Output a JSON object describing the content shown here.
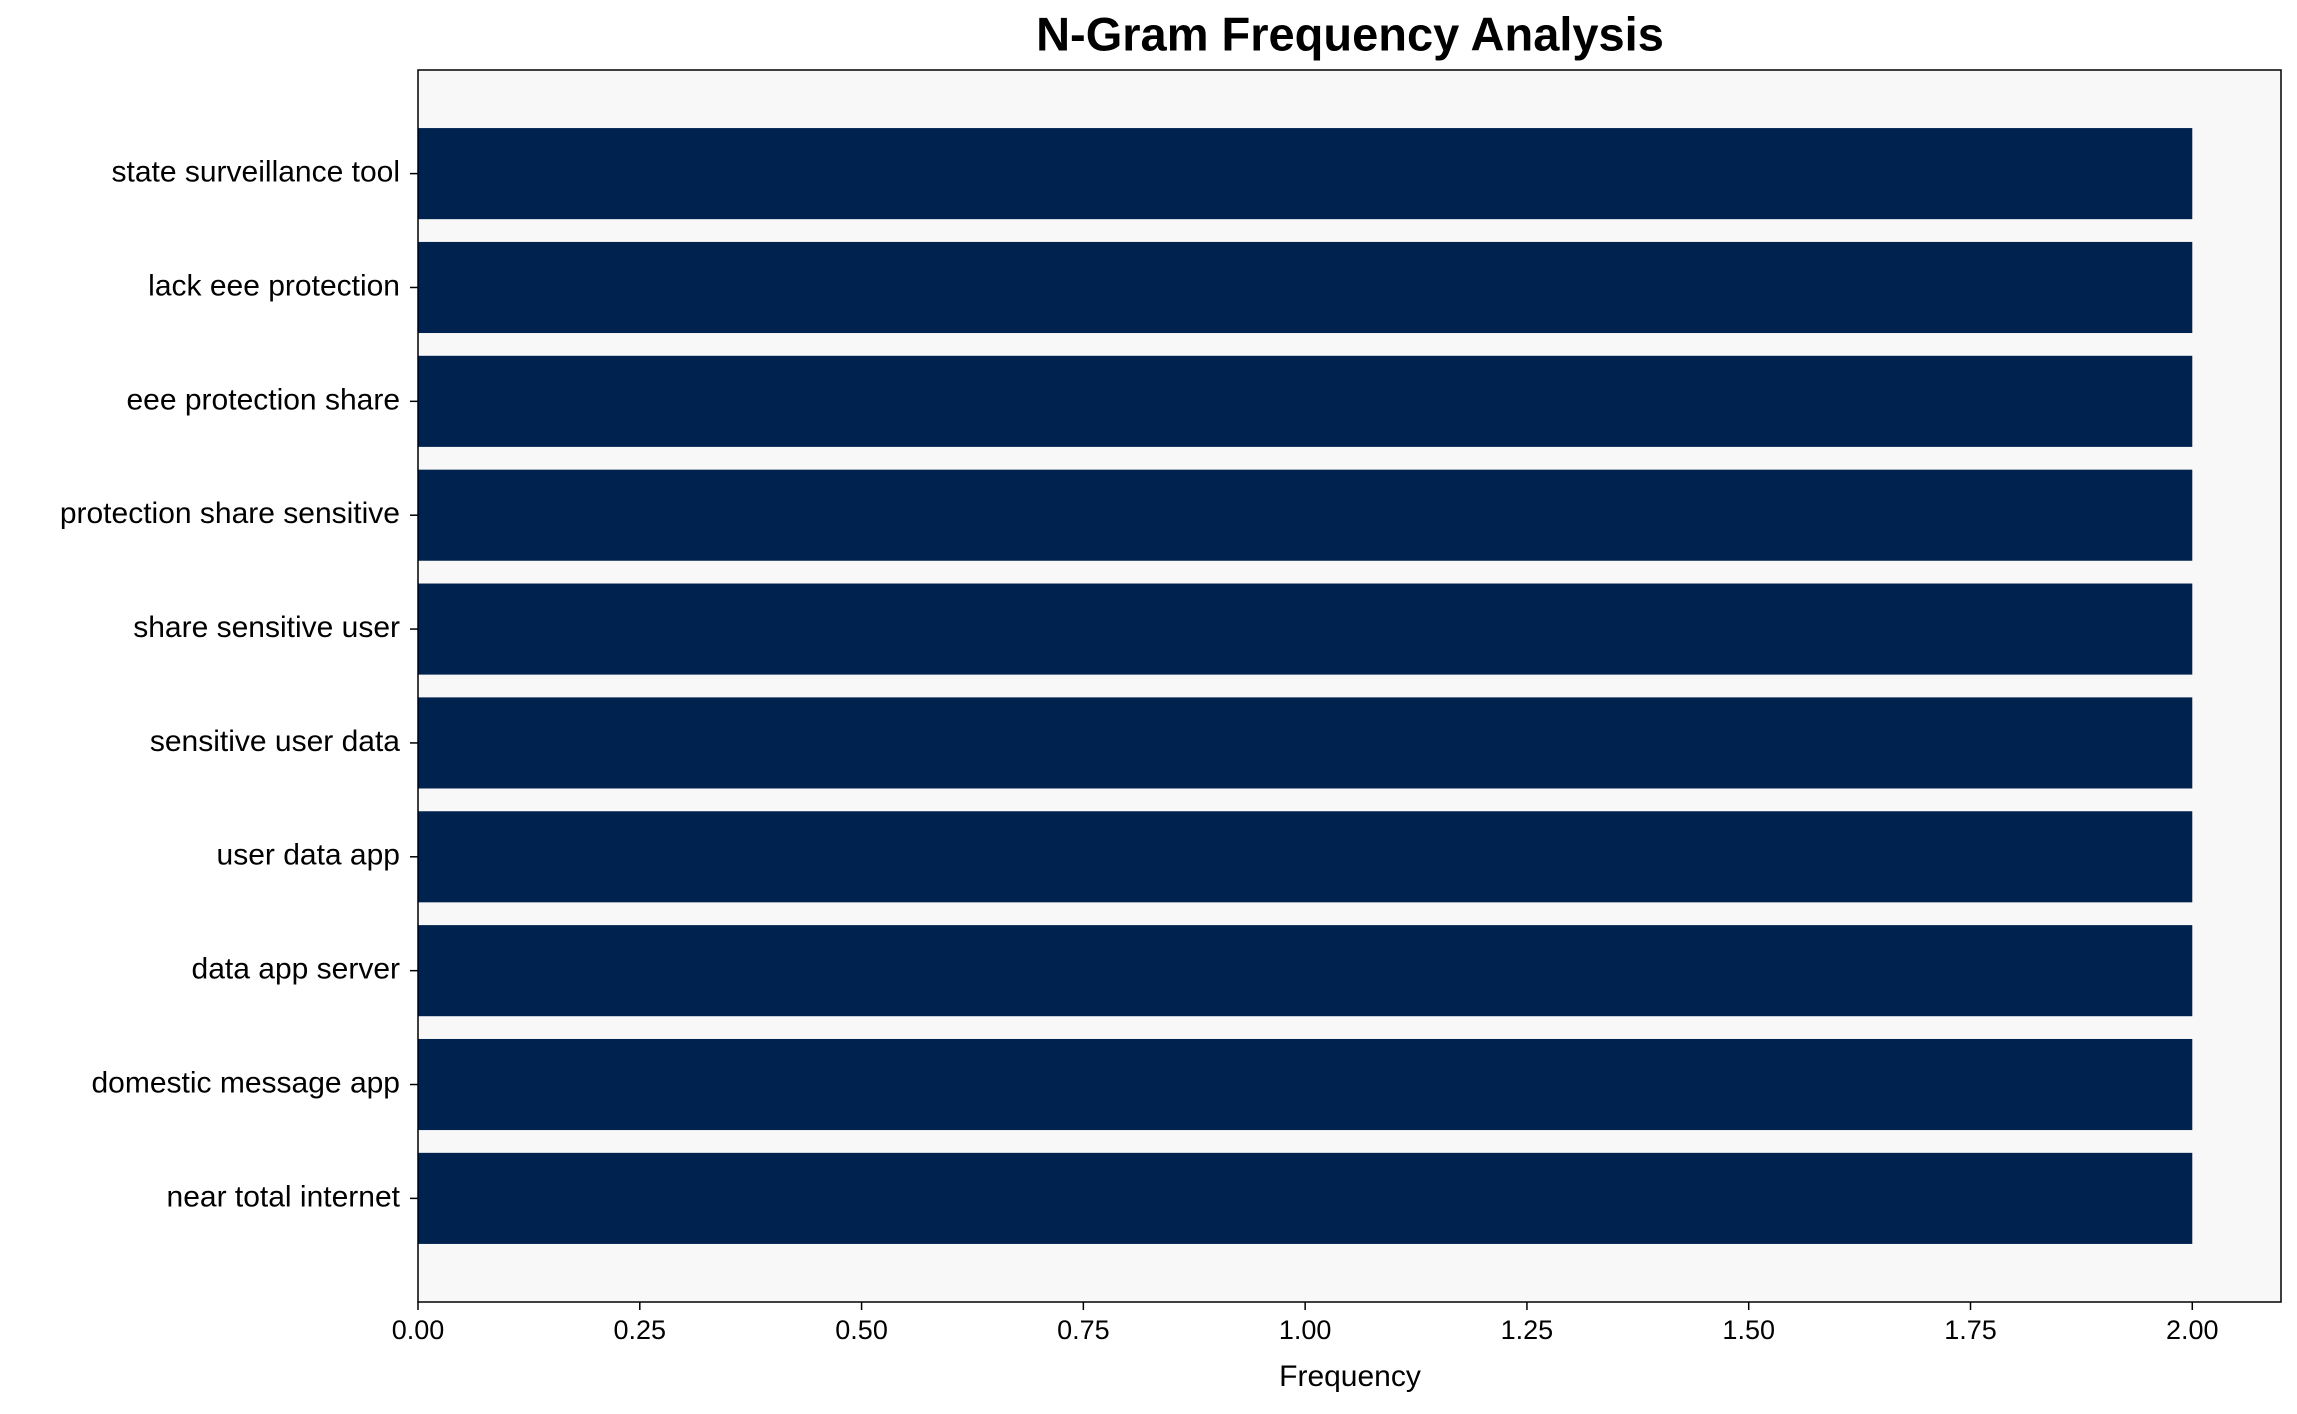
{
  "chart_data": {
    "type": "barh",
    "title": "N-Gram Frequency Analysis",
    "x_label": "Frequency",
    "categories": [
      "state surveillance tool",
      "lack eee protection",
      "eee protection share",
      "protection share sensitive",
      "share sensitive user",
      "sensitive user data",
      "user data app",
      "data app server",
      "domestic message app",
      "near total internet"
    ],
    "values": [
      2,
      2,
      2,
      2,
      2,
      2,
      2,
      2,
      2,
      2
    ],
    "color": "#00224e",
    "plot_background": "#f8f8f8",
    "xlim": [
      0,
      2.1
    ],
    "xticks": [
      {
        "value": 0,
        "label": "0.00"
      },
      {
        "value": 0.25,
        "label": "0.25"
      },
      {
        "value": 0.5,
        "label": "0.50"
      },
      {
        "value": 0.75,
        "label": "0.75"
      },
      {
        "value": 1,
        "label": "1.00"
      },
      {
        "value": 1.25,
        "label": "1.25"
      },
      {
        "value": 1.5,
        "label": "1.50"
      },
      {
        "value": 1.75,
        "label": "1.75"
      },
      {
        "value": 2,
        "label": "2.00"
      }
    ],
    "grid": false
  }
}
